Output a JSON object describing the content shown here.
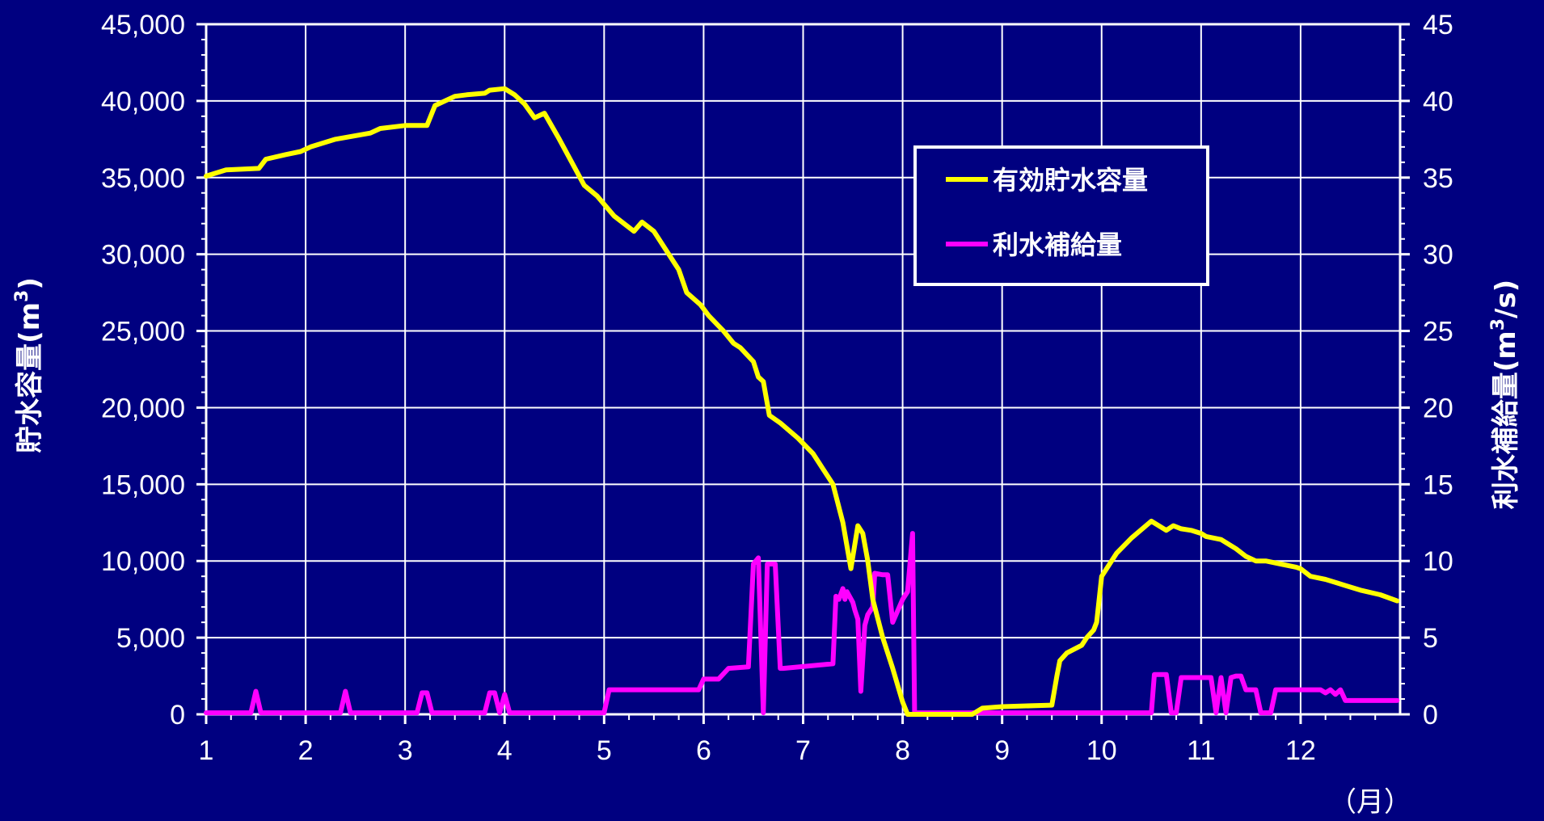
{
  "chart_data": {
    "type": "line",
    "xlabel": "（月）",
    "ylabel_left": "貯水容量",
    "ylabel_left_unit": "(m",
    "ylabel_left_sup": "3",
    "ylabel_left_unit_end": ")",
    "ylabel_right": "利水補給量",
    "ylabel_right_unit": "(m",
    "ylabel_right_sup": "3",
    "ylabel_right_unit_end": "/s)",
    "xlim": [
      1,
      13
    ],
    "ylim_left": [
      0,
      45000
    ],
    "ylim_right": [
      0,
      45
    ],
    "x_ticks": [
      "1",
      "2",
      "3",
      "4",
      "5",
      "6",
      "7",
      "8",
      "9",
      "10",
      "11",
      "12"
    ],
    "y_left_ticks": [
      "0",
      "5,000",
      "10,000",
      "15,000",
      "20,000",
      "25,000",
      "30,000",
      "35,000",
      "40,000",
      "45,000"
    ],
    "y_right_ticks": [
      "0",
      "5",
      "10",
      "15",
      "20",
      "25",
      "30",
      "35",
      "40",
      "45"
    ],
    "grid": true,
    "legend_position": "top-right",
    "colors": {
      "background": "#000080",
      "storage": "#ffff00",
      "supply": "#ff00ff",
      "grid": "#ffffff"
    },
    "series": [
      {
        "name": "有効貯水容量",
        "axis": "left",
        "x": [
          1.0,
          1.2,
          1.53,
          1.6,
          1.8,
          1.95,
          2.05,
          2.3,
          2.65,
          2.75,
          3.0,
          3.22,
          3.3,
          3.5,
          3.62,
          3.8,
          3.85,
          4.0,
          4.1,
          4.2,
          4.3,
          4.4,
          4.55,
          4.8,
          4.93,
          5.1,
          5.3,
          5.38,
          5.5,
          5.75,
          5.83,
          5.97,
          6.05,
          6.2,
          6.3,
          6.37,
          6.5,
          6.55,
          6.6,
          6.66,
          6.77,
          6.95,
          7.1,
          7.2,
          7.3,
          7.4,
          7.48,
          7.55,
          7.6,
          7.65,
          7.7,
          7.8,
          7.9,
          8.0,
          8.05,
          8.08,
          8.12,
          8.7,
          8.8,
          9.0,
          9.5,
          9.55,
          9.58,
          9.65,
          9.8,
          9.85,
          9.92,
          9.95,
          10.0,
          10.15,
          10.3,
          10.5,
          10.55,
          10.65,
          10.72,
          10.8,
          10.9,
          11.0,
          11.05,
          11.2,
          11.25,
          11.35,
          11.45,
          11.55,
          11.65,
          11.8,
          11.95,
          12.0,
          12.1,
          12.25,
          12.35,
          12.45,
          12.6,
          12.8,
          12.97
        ],
        "values": [
          35100,
          35500,
          35600,
          36200,
          36500,
          36700,
          37000,
          37500,
          37900,
          38200,
          38400,
          38400,
          39700,
          40300,
          40400,
          40500,
          40700,
          40800,
          40400,
          39800,
          38900,
          39200,
          37500,
          34500,
          33800,
          32500,
          31500,
          32100,
          31500,
          29000,
          27500,
          26700,
          26000,
          25000,
          24200,
          23900,
          23000,
          22000,
          21700,
          19500,
          19000,
          18000,
          17000,
          16000,
          15000,
          12500,
          9500,
          12300,
          11800,
          10000,
          7500,
          5000,
          3000,
          800,
          0,
          0,
          0,
          0,
          400,
          500,
          600,
          2500,
          3500,
          4000,
          4500,
          5000,
          5500,
          6000,
          9000,
          10500,
          11500,
          12600,
          12400,
          12000,
          12300,
          12100,
          12000,
          11800,
          11600,
          11400,
          11200,
          10800,
          10300,
          10000,
          10000,
          9800,
          9600,
          9500,
          9000,
          8800,
          8600,
          8400,
          8100,
          7800,
          7400
        ]
      },
      {
        "name": "利水補給量",
        "axis": "right",
        "x": [
          1.0,
          1.45,
          1.5,
          1.55,
          2.35,
          2.4,
          2.45,
          3.12,
          3.17,
          3.22,
          3.27,
          3.8,
          3.85,
          3.9,
          3.95,
          4.0,
          4.05,
          4.1,
          5.0,
          5.05,
          5.95,
          6.0,
          6.15,
          6.25,
          6.45,
          6.5,
          6.55,
          6.6,
          6.64,
          6.68,
          6.72,
          6.77,
          6.8,
          7.3,
          7.33,
          7.36,
          7.4,
          7.42,
          7.44,
          7.5,
          7.52,
          7.55,
          7.58,
          7.62,
          7.65,
          7.7,
          7.72,
          7.8,
          7.85,
          7.9,
          8.0,
          8.05,
          8.1,
          8.12,
          8.15,
          10.5,
          10.53,
          10.6,
          10.65,
          10.7,
          10.75,
          10.8,
          10.85,
          10.9,
          11.1,
          11.15,
          11.2,
          11.25,
          11.3,
          11.35,
          11.4,
          11.45,
          11.5,
          11.55,
          11.6,
          11.65,
          11.7,
          11.75,
          11.8,
          11.9,
          12.0,
          12.2,
          12.25,
          12.3,
          12.35,
          12.4,
          12.45,
          12.6,
          12.8,
          12.97
        ],
        "values": [
          0.1,
          0.1,
          1.5,
          0.1,
          0.1,
          1.5,
          0.1,
          0.1,
          1.4,
          1.4,
          0.1,
          0.1,
          1.4,
          1.4,
          0.1,
          1.3,
          0.1,
          0.1,
          0.1,
          1.6,
          1.6,
          2.3,
          2.3,
          3.0,
          3.1,
          9.8,
          10.2,
          0.1,
          9.8,
          9.8,
          9.8,
          3.0,
          3.0,
          3.3,
          7.7,
          7.5,
          8.2,
          7.5,
          8.0,
          7.3,
          6.8,
          6.2,
          1.5,
          5.8,
          6.5,
          7.0,
          9.2,
          9.1,
          9.1,
          6.0,
          7.5,
          8.0,
          11.8,
          0.1,
          0.1,
          0.1,
          2.6,
          2.6,
          2.6,
          0.1,
          0.1,
          2.4,
          2.4,
          2.4,
          2.4,
          0.1,
          2.4,
          0.1,
          2.4,
          2.5,
          2.5,
          1.6,
          1.6,
          1.6,
          0.1,
          0.1,
          0.1,
          1.6,
          1.6,
          1.6,
          1.6,
          1.6,
          1.4,
          1.6,
          1.3,
          1.6,
          0.9,
          0.9,
          0.9,
          0.9
        ]
      }
    ]
  }
}
